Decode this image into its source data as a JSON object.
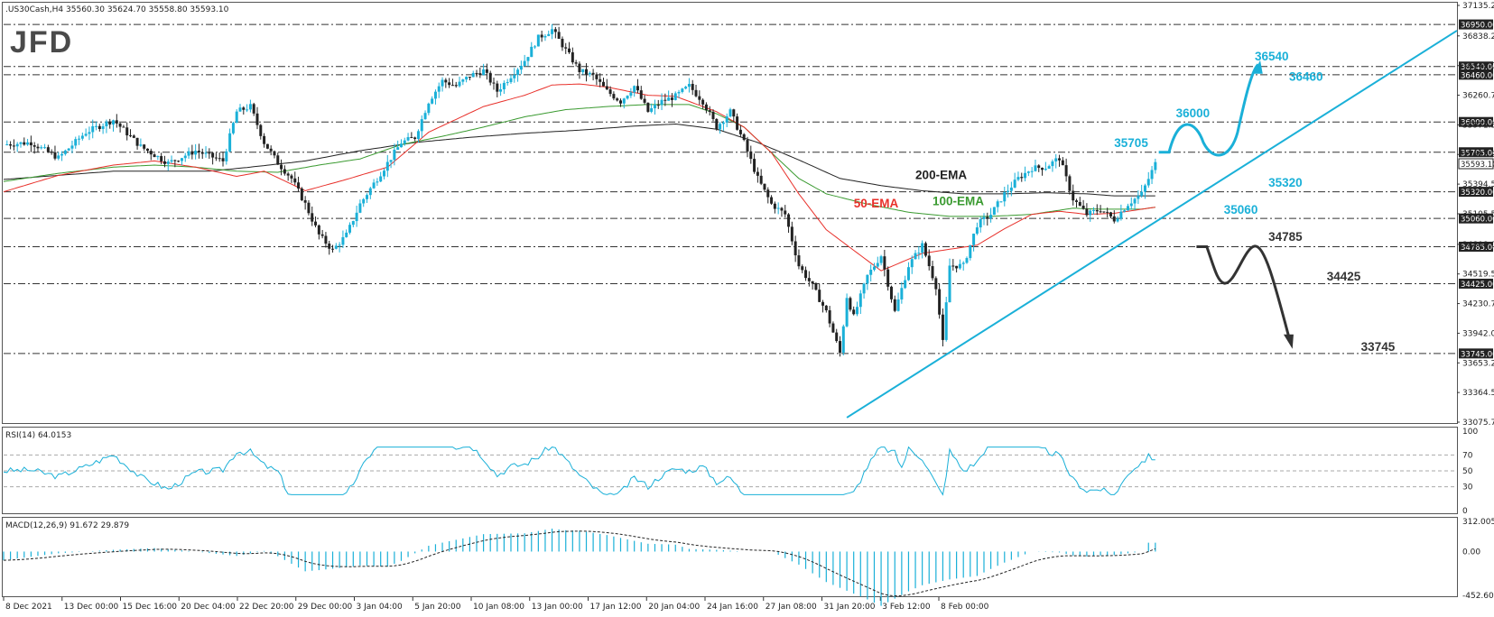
{
  "header": {
    "symbol_info": ".US30Cash,H4  35560.30 35624.70 35558.80 35593.10",
    "logo": "JFD"
  },
  "colors": {
    "bull": "#1ab0d8",
    "bear": "#222222",
    "ema50": "#e8302a",
    "ema100": "#3a9a30",
    "ema200": "#222222",
    "trendline": "#1ab0d8",
    "scenario_up": "#1ab0d8",
    "scenario_down": "#333333",
    "price_tag_bg": "#222222"
  },
  "chart_data": [
    {
      "type": "candlestick",
      "instrument": ".US30Cash",
      "timeframe": "H4",
      "ohlc_last": {
        "open": 35560.3,
        "high": 35624.7,
        "low": 35558.8,
        "close": 35593.1
      },
      "ylim": [
        33075.75,
        37135.25
      ],
      "y_ticks": [
        "37135.25",
        "36838.25",
        "36549.00",
        "36260.75",
        "35971.50",
        "35683.25",
        "35394.50",
        "35105.50",
        "34808.00",
        "34519.50",
        "34230.75",
        "33942.00",
        "33653.25",
        "33364.50",
        "33075.75"
      ],
      "x_tick_labels": [
        "8 Dec 2021",
        "13 Dec 00:00",
        "15 Dec 16:00",
        "20 Dec 04:00",
        "22 Dec 20:00",
        "29 Dec 00:00",
        "3 Jan 04:00",
        "5 Jan 20:00",
        "10 Jan 08:00",
        "13 Jan 00:00",
        "17 Jan 12:00",
        "20 Jan 04:00",
        "24 Jan 16:00",
        "27 Jan 08:00",
        "31 Jan 20:00",
        "3 Feb 12:00",
        "8 Feb 00:00"
      ],
      "horizontal_levels": [
        {
          "value": 36950.0,
          "label": "36950.00"
        },
        {
          "value": 36540.0,
          "label": "36540.00"
        },
        {
          "value": 36460.0,
          "label": "36460.00"
        },
        {
          "value": 36000.0,
          "label": "36000.00"
        },
        {
          "value": 35705.0,
          "label": "35705.00"
        },
        {
          "value": 35320.0,
          "label": "35320.00"
        },
        {
          "value": 35060.0,
          "label": "35060.00"
        },
        {
          "value": 34785.0,
          "label": "34785.00"
        },
        {
          "value": 34425.0,
          "label": "34425.00"
        },
        {
          "value": 33745.0,
          "label": "33745.00"
        }
      ],
      "current_price_label": "35593.10",
      "close_path": [
        [
          0,
          35780
        ],
        [
          4,
          35800
        ],
        [
          8,
          35650
        ],
        [
          12,
          35900
        ],
        [
          16,
          36020
        ],
        [
          20,
          35760
        ],
        [
          24,
          35600
        ],
        [
          28,
          35720
        ],
        [
          32,
          35620
        ],
        [
          34,
          36100
        ],
        [
          36,
          36150
        ],
        [
          38,
          35800
        ],
        [
          40,
          35600
        ],
        [
          42,
          35450
        ],
        [
          44,
          35200
        ],
        [
          46,
          34900
        ],
        [
          48,
          34750
        ],
        [
          50,
          34900
        ],
        [
          52,
          35200
        ],
        [
          54,
          35400
        ],
        [
          56,
          35600
        ],
        [
          58,
          35800
        ],
        [
          60,
          35850
        ],
        [
          62,
          36200
        ],
        [
          64,
          36400
        ],
        [
          66,
          36350
        ],
        [
          68,
          36450
        ],
        [
          70,
          36500
        ],
        [
          72,
          36300
        ],
        [
          74,
          36450
        ],
        [
          76,
          36600
        ],
        [
          78,
          36820
        ],
        [
          80,
          36900
        ],
        [
          82,
          36700
        ],
        [
          84,
          36500
        ],
        [
          86,
          36450
        ],
        [
          88,
          36300
        ],
        [
          90,
          36200
        ],
        [
          92,
          36350
        ],
        [
          94,
          36100
        ],
        [
          96,
          36200
        ],
        [
          98,
          36250
        ],
        [
          100,
          36350
        ],
        [
          102,
          36200
        ],
        [
          104,
          35950
        ],
        [
          106,
          36100
        ],
        [
          108,
          35800
        ],
        [
          110,
          35450
        ],
        [
          112,
          35200
        ],
        [
          114,
          35100
        ],
        [
          116,
          34600
        ],
        [
          118,
          34400
        ],
        [
          120,
          34150
        ],
        [
          122,
          33750
        ],
        [
          123,
          34300
        ],
        [
          124,
          34100
        ],
        [
          126,
          34500
        ],
        [
          128,
          34700
        ],
        [
          130,
          34150
        ],
        [
          132,
          34600
        ],
        [
          134,
          34800
        ],
        [
          136,
          34400
        ],
        [
          137,
          33850
        ],
        [
          138,
          34600
        ],
        [
          140,
          34600
        ],
        [
          142,
          35000
        ],
        [
          144,
          35100
        ],
        [
          146,
          35300
        ],
        [
          148,
          35450
        ],
        [
          150,
          35550
        ],
        [
          152,
          35560
        ],
        [
          154,
          35650
        ],
        [
          156,
          35250
        ],
        [
          158,
          35100
        ],
        [
          160,
          35150
        ],
        [
          162,
          35050
        ],
        [
          164,
          35200
        ],
        [
          166,
          35300
        ],
        [
          168,
          35593
        ]
      ],
      "ema_50": [
        [
          0,
          35320
        ],
        [
          8,
          35480
        ],
        [
          16,
          35580
        ],
        [
          22,
          35620
        ],
        [
          28,
          35560
        ],
        [
          34,
          35470
        ],
        [
          38,
          35520
        ],
        [
          44,
          35330
        ],
        [
          50,
          35440
        ],
        [
          56,
          35560
        ],
        [
          62,
          35900
        ],
        [
          70,
          36150
        ],
        [
          76,
          36260
        ],
        [
          80,
          36360
        ],
        [
          84,
          36370
        ],
        [
          88,
          36340
        ],
        [
          94,
          36260
        ],
        [
          98,
          36250
        ],
        [
          104,
          36100
        ],
        [
          108,
          35950
        ],
        [
          112,
          35700
        ],
        [
          116,
          35300
        ],
        [
          120,
          34950
        ],
        [
          124,
          34750
        ],
        [
          128,
          34550
        ],
        [
          134,
          34720
        ],
        [
          138,
          34760
        ],
        [
          142,
          34800
        ],
        [
          146,
          34960
        ],
        [
          150,
          35100
        ],
        [
          154,
          35130
        ],
        [
          158,
          35100
        ],
        [
          162,
          35110
        ],
        [
          166,
          35150
        ],
        [
          168,
          35170
        ]
      ],
      "ema_100": [
        [
          0,
          35420
        ],
        [
          8,
          35500
        ],
        [
          16,
          35560
        ],
        [
          22,
          35580
        ],
        [
          28,
          35560
        ],
        [
          34,
          35520
        ],
        [
          40,
          35510
        ],
        [
          46,
          35580
        ],
        [
          52,
          35640
        ],
        [
          58,
          35780
        ],
        [
          64,
          35860
        ],
        [
          70,
          35950
        ],
        [
          76,
          36050
        ],
        [
          82,
          36120
        ],
        [
          88,
          36150
        ],
        [
          94,
          36170
        ],
        [
          100,
          36170
        ],
        [
          104,
          36080
        ],
        [
          108,
          35950
        ],
        [
          112,
          35700
        ],
        [
          116,
          35450
        ],
        [
          120,
          35300
        ],
        [
          126,
          35200
        ],
        [
          132,
          35120
        ],
        [
          138,
          35080
        ],
        [
          144,
          35080
        ],
        [
          150,
          35100
        ],
        [
          156,
          35160
        ],
        [
          160,
          35150
        ],
        [
          166,
          35150
        ],
        [
          168,
          35170
        ]
      ],
      "ema_200": [
        [
          0,
          35440
        ],
        [
          8,
          35480
        ],
        [
          16,
          35520
        ],
        [
          24,
          35520
        ],
        [
          30,
          35520
        ],
        [
          36,
          35560
        ],
        [
          44,
          35620
        ],
        [
          52,
          35720
        ],
        [
          60,
          35800
        ],
        [
          68,
          35850
        ],
        [
          76,
          35890
        ],
        [
          84,
          35920
        ],
        [
          92,
          35960
        ],
        [
          98,
          35980
        ],
        [
          104,
          35930
        ],
        [
          110,
          35800
        ],
        [
          116,
          35630
        ],
        [
          122,
          35450
        ],
        [
          128,
          35380
        ],
        [
          134,
          35330
        ],
        [
          140,
          35300
        ],
        [
          146,
          35300
        ],
        [
          152,
          35310
        ],
        [
          158,
          35300
        ],
        [
          162,
          35280
        ],
        [
          166,
          35280
        ],
        [
          168,
          35280
        ]
      ],
      "trendline": {
        "from": [
          123,
          33120
        ],
        "to": [
          212,
          36890
        ]
      },
      "annotations": [
        {
          "text": "200-EMA",
          "x": 133,
          "y": 35445,
          "color": "#222222"
        },
        {
          "text": "50-EMA",
          "x": 124,
          "y": 35165,
          "color": "#e8302a"
        },
        {
          "text": "100-EMA",
          "x": 135.5,
          "y": 35190,
          "color": "#3a9a30"
        },
        {
          "text": "35705",
          "x": 162,
          "y": 35755,
          "color": "#1ab0d8"
        },
        {
          "text": "36000",
          "x": 171,
          "y": 36045,
          "color": "#1ab0d8"
        },
        {
          "text": "36540",
          "x": 182.5,
          "y": 36600,
          "color": "#1ab0d8"
        },
        {
          "text": "36460",
          "x": 187.5,
          "y": 36400,
          "color": "#1ab0d8"
        },
        {
          "text": "35320",
          "x": 184.5,
          "y": 35370,
          "color": "#1ab0d8"
        },
        {
          "text": "35060",
          "x": 178,
          "y": 35105,
          "color": "#1ab0d8"
        },
        {
          "text": "34785",
          "x": 184.5,
          "y": 34840,
          "color": "#333333"
        },
        {
          "text": "34425",
          "x": 193,
          "y": 34455,
          "color": "#333333"
        },
        {
          "text": "33745",
          "x": 198,
          "y": 33770,
          "color": "#333333"
        }
      ]
    },
    {
      "type": "line",
      "title": "RSI(14) 64.0153",
      "ylim": [
        0,
        100
      ],
      "y_ticks": [
        100,
        70,
        50,
        30,
        0
      ],
      "levels": [
        70,
        50,
        30
      ],
      "current_value": 64.0153
    },
    {
      "type": "bar",
      "title": "MACD(12,26,9) 91.672 29.879",
      "ylim": [
        -452.601,
        312.005
      ],
      "y_ticks": [
        "312.005",
        "0.00",
        "-452.601"
      ],
      "macd_value": 91.672,
      "signal_value": 29.879
    }
  ]
}
